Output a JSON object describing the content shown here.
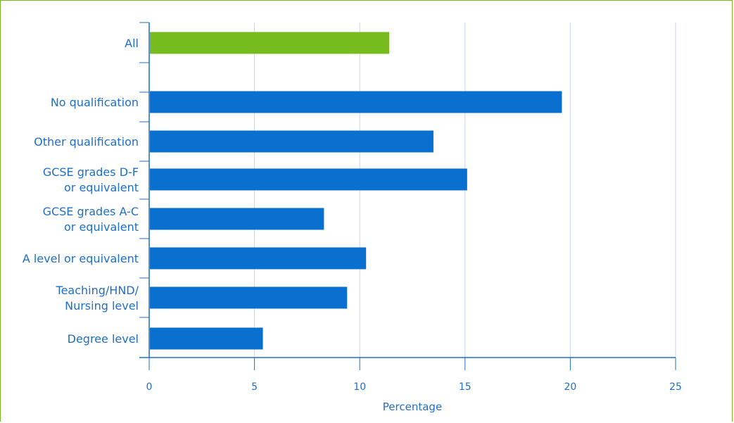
{
  "chart_data": {
    "type": "bar",
    "orientation": "horizontal",
    "categories": [
      "All",
      "",
      "No qualification",
      "Other qualification",
      "GCSE grades D-F\nor equivalent",
      "GCSE grades A-C\nor equivalent",
      "A level or equivalent",
      "Teaching/HND/\nNursing level",
      "Degree level"
    ],
    "values": [
      11.4,
      null,
      19.6,
      13.5,
      15.1,
      8.3,
      10.3,
      9.4,
      5.4
    ],
    "xlabel": "Percentage",
    "xlim": [
      0,
      25
    ],
    "xticks": [
      "0",
      "5",
      "10",
      "15",
      "20",
      "25"
    ],
    "grid": true,
    "colors": {
      "highlight": "#77bc1f",
      "bar": "#0a70cf",
      "grid": "#c9d6ea",
      "axis": "#1f6fc6",
      "text": "#1f6fc6",
      "border": "#7ab51d"
    },
    "highlight_category": "All"
  }
}
